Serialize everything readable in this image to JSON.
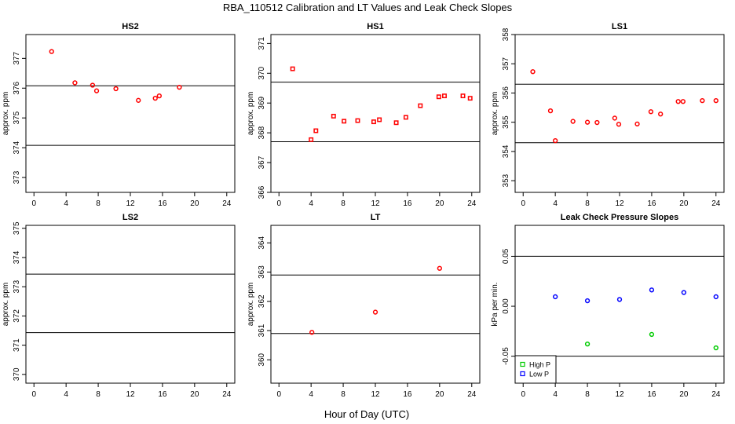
{
  "figure": {
    "title": "RBA_110512  Calibration and LT Values and Leak Check Slopes",
    "xlabel": "Hour of Day (UTC)"
  },
  "chart_data": [
    {
      "type": "scatter",
      "title": "HS2",
      "ylabel": "approx. ppm",
      "xlim": [
        -1,
        25
      ],
      "ylim": [
        372.5,
        377.8
      ],
      "xticks": [
        0,
        4,
        8,
        12,
        16,
        20,
        24
      ],
      "yticks": [
        373,
        374,
        375,
        376,
        377
      ],
      "hlines": [
        374.08,
        376.08
      ],
      "series": [
        {
          "name": "HS2",
          "color": "#ff0000",
          "marker": "circle",
          "x": [
            2.2,
            5.1,
            7.3,
            7.8,
            10.2,
            13.0,
            15.1,
            15.6,
            18.1
          ],
          "y": [
            377.23,
            376.18,
            376.1,
            375.91,
            375.98,
            375.59,
            375.66,
            375.74,
            376.03
          ]
        }
      ]
    },
    {
      "type": "scatter",
      "title": "HS1",
      "ylabel": "approx. ppm",
      "xlim": [
        -1,
        25
      ],
      "ylim": [
        366,
        371.3
      ],
      "xticks": [
        0,
        4,
        8,
        12,
        16,
        20,
        24
      ],
      "yticks": [
        366,
        367,
        368,
        369,
        370,
        371
      ],
      "hlines": [
        367.7,
        369.7
      ],
      "series": [
        {
          "name": "HS1",
          "color": "#ff0000",
          "marker": "square",
          "x": [
            1.7,
            4.0,
            4.6,
            6.8,
            8.1,
            9.8,
            11.8,
            12.5,
            14.6,
            15.8,
            17.6,
            19.9,
            20.6,
            22.9,
            23.8
          ],
          "y": [
            370.15,
            367.77,
            368.07,
            368.56,
            368.39,
            368.41,
            368.37,
            368.44,
            368.34,
            368.52,
            368.91,
            369.21,
            369.24,
            369.24,
            369.16
          ]
        }
      ]
    },
    {
      "type": "scatter",
      "title": "LS1",
      "ylabel": "approx. ppm",
      "xlim": [
        -1,
        25
      ],
      "ylim": [
        352.6,
        358
      ],
      "xticks": [
        0,
        4,
        8,
        12,
        16,
        20,
        24
      ],
      "yticks": [
        353,
        354,
        355,
        356,
        357,
        358
      ],
      "hlines": [
        354.3,
        356.3
      ],
      "series": [
        {
          "name": "LS1",
          "color": "#ff0000",
          "marker": "circle",
          "x": [
            1.2,
            3.4,
            4.0,
            6.2,
            8.0,
            9.2,
            11.4,
            11.9,
            14.2,
            15.9,
            17.1,
            19.3,
            19.9,
            22.3,
            24.0
          ],
          "y": [
            356.73,
            355.39,
            354.37,
            355.03,
            355.0,
            354.99,
            355.14,
            354.93,
            354.94,
            355.36,
            355.28,
            355.71,
            355.71,
            355.74,
            355.74
          ]
        }
      ]
    },
    {
      "type": "scatter",
      "title": "LS2",
      "ylabel": "approx. ppm",
      "xlim": [
        -1,
        25
      ],
      "ylim": [
        369.7,
        375.1
      ],
      "xticks": [
        0,
        4,
        8,
        12,
        16,
        20,
        24
      ],
      "yticks": [
        370,
        371,
        372,
        373,
        374,
        375
      ],
      "hlines": [
        371.43,
        373.43
      ],
      "series": []
    },
    {
      "type": "scatter",
      "title": "LT",
      "ylabel": "approx. ppm",
      "xlim": [
        -1,
        25
      ],
      "ylim": [
        359.2,
        364.6
      ],
      "xticks": [
        0,
        4,
        8,
        12,
        16,
        20,
        24
      ],
      "yticks": [
        360,
        361,
        362,
        363,
        364
      ],
      "hlines": [
        360.9,
        362.9
      ],
      "series": [
        {
          "name": "LT",
          "color": "#ff0000",
          "marker": "circle",
          "x": [
            4.1,
            12.0,
            20.0
          ],
          "y": [
            360.94,
            361.63,
            363.13
          ]
        }
      ]
    },
    {
      "type": "scatter",
      "title": "Leak Check Pressure Slopes",
      "ylabel": "kPa per min.",
      "xlim": [
        -1,
        25
      ],
      "ylim": [
        -0.077,
        0.081
      ],
      "xticks": [
        0,
        4,
        8,
        12,
        16,
        20,
        24
      ],
      "yticks": [
        -0.05,
        0.0,
        0.05
      ],
      "ytick_labels": [
        "-0.05",
        "0.00",
        "0.05"
      ],
      "hlines": [
        -0.05,
        0.05
      ],
      "legend": {
        "position": "bottom-left",
        "entries": [
          "High P",
          "Low P"
        ]
      },
      "series": [
        {
          "name": "High P",
          "color": "#00cc00",
          "marker": "circle",
          "x": [
            8.0,
            16.0,
            24.0
          ],
          "y": [
            -0.0378,
            -0.0282,
            -0.0416
          ]
        },
        {
          "name": "Low P",
          "color": "#0000ff",
          "marker": "circle",
          "x": [
            4.0,
            8.0,
            12.0,
            16.0,
            20.0,
            24.0
          ],
          "y": [
            0.0095,
            0.0055,
            0.0068,
            0.0163,
            0.0138,
            0.0095
          ]
        }
      ]
    }
  ]
}
